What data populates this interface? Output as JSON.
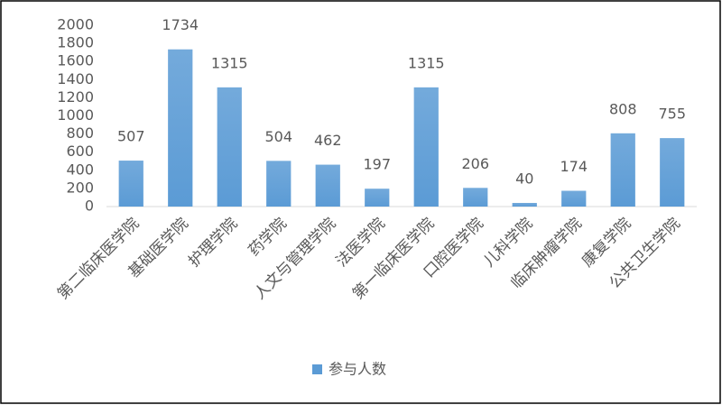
{
  "chart_data": {
    "type": "bar",
    "categories": [
      "第二临床医学院",
      "基础医学院",
      "护理学院",
      "药学院",
      "人文与管理学院",
      "法医学院",
      "第一临床医学院",
      "口腔医学院",
      "儿科学院",
      "临床肿瘤学院",
      "康复学院",
      "公共卫生学院"
    ],
    "series": [
      {
        "name": "参与人数",
        "color": "#5b9bd5",
        "values": [
          507,
          1734,
          1315,
          504,
          462,
          197,
          1315,
          206,
          40,
          174,
          808,
          755
        ]
      }
    ],
    "ylim": [
      0,
      2000
    ],
    "yticks": [
      0,
      200,
      400,
      600,
      800,
      1000,
      1200,
      1400,
      1600,
      1800,
      2000
    ],
    "grid": false,
    "legend": "bottom"
  }
}
